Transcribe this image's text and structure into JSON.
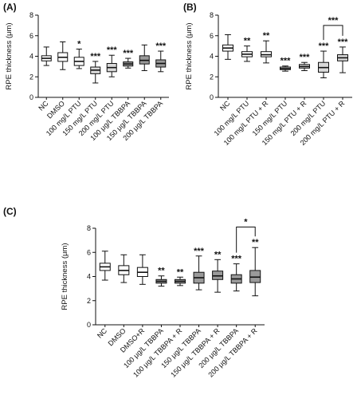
{
  "chart_data": [
    {
      "panel": "(A)",
      "type": "box",
      "ylabel": "RPE thickness (μm)",
      "ylim": [
        0,
        8
      ],
      "yticks": [
        0,
        2,
        4,
        6,
        8
      ],
      "categories": [
        "NC",
        "DMSO",
        "100 mg/L PTU",
        "150 mg/L PTU",
        "200 mg/L PTU",
        "100 μg/L TBBPA",
        "150 μg/L TBBPA",
        "200 μg/L TBBPA"
      ],
      "boxes": [
        {
          "min": 3.1,
          "q1": 3.55,
          "median": 3.8,
          "q3": 4.05,
          "max": 4.9,
          "fill": "#ffffff",
          "sig": ""
        },
        {
          "min": 2.7,
          "q1": 3.5,
          "median": 3.9,
          "q3": 4.35,
          "max": 5.4,
          "fill": "#ffffff",
          "sig": ""
        },
        {
          "min": 2.8,
          "q1": 3.1,
          "median": 3.5,
          "q3": 3.9,
          "max": 4.7,
          "fill": "#ffffff",
          "sig": "*"
        },
        {
          "min": 1.4,
          "q1": 2.3,
          "median": 2.65,
          "q3": 2.95,
          "max": 3.5,
          "fill": "#d9d9d9",
          "sig": "***"
        },
        {
          "min": 2.0,
          "q1": 2.5,
          "median": 2.9,
          "q3": 3.3,
          "max": 4.1,
          "fill": "#d9d9d9",
          "sig": "***"
        },
        {
          "min": 2.85,
          "q1": 3.05,
          "median": 3.25,
          "q3": 3.45,
          "max": 3.8,
          "fill": "#9a9a9a",
          "sig": "***"
        },
        {
          "min": 2.6,
          "q1": 3.25,
          "median": 3.6,
          "q3": 4.05,
          "max": 5.1,
          "fill": "#9a9a9a",
          "sig": ""
        },
        {
          "min": 2.5,
          "q1": 2.95,
          "median": 3.3,
          "q3": 3.65,
          "max": 4.5,
          "fill": "#9a9a9a",
          "sig": "***"
        }
      ],
      "brackets": []
    },
    {
      "panel": "(B)",
      "type": "box",
      "ylabel": "RPE thickness (μm)",
      "ylim": [
        0,
        8
      ],
      "yticks": [
        0,
        2,
        4,
        6,
        8
      ],
      "categories": [
        "NC",
        "100 mg/L PTU",
        "100 mg/L PTU + R",
        "150 mg/L PTU",
        "150 mg/L PTU + R",
        "200 mg/L PTU",
        "200 mg/L PTU + R"
      ],
      "boxes": [
        {
          "min": 3.7,
          "q1": 4.5,
          "median": 4.8,
          "q3": 5.1,
          "max": 6.1,
          "fill": "#ffffff",
          "sig": ""
        },
        {
          "min": 3.5,
          "q1": 3.95,
          "median": 4.2,
          "q3": 4.45,
          "max": 5.0,
          "fill": "#ffffff",
          "sig": "**"
        },
        {
          "min": 3.35,
          "q1": 3.95,
          "median": 4.15,
          "q3": 4.45,
          "max": 5.5,
          "fill": "#ffffff",
          "sig": "**"
        },
        {
          "min": 2.55,
          "q1": 2.7,
          "median": 2.8,
          "q3": 2.95,
          "max": 3.05,
          "fill": "#d9d9d9",
          "sig": "***"
        },
        {
          "min": 2.6,
          "q1": 2.85,
          "median": 3.0,
          "q3": 3.2,
          "max": 3.4,
          "fill": "#d9d9d9",
          "sig": "***"
        },
        {
          "min": 1.9,
          "q1": 2.45,
          "median": 2.9,
          "q3": 3.4,
          "max": 4.5,
          "fill": "#d9d9d9",
          "sig": "***"
        },
        {
          "min": 2.4,
          "q1": 3.55,
          "median": 3.85,
          "q3": 4.15,
          "max": 4.9,
          "fill": "#d9d9d9",
          "sig": "***"
        }
      ],
      "brackets": [
        {
          "from": 5,
          "to": 6,
          "y": 7.0,
          "label": "***"
        }
      ]
    },
    {
      "panel": "(C)",
      "type": "box",
      "ylabel": "RPE thickness (μm)",
      "ylim": [
        0,
        8
      ],
      "yticks": [
        0,
        2,
        4,
        6,
        8
      ],
      "categories": [
        "NC",
        "DMSO",
        "DMSO+R",
        "100 μg/L TBBPA",
        "100 μg/L TBBPA + R",
        "150 μg/L TBBPA",
        "150 μg/L TBBPA + R",
        "200 μg/L TBBPA",
        "200 μg/L TBBPA + R"
      ],
      "boxes": [
        {
          "min": 3.7,
          "q1": 4.5,
          "median": 4.8,
          "q3": 5.1,
          "max": 6.1,
          "fill": "#ffffff",
          "sig": ""
        },
        {
          "min": 3.5,
          "q1": 4.15,
          "median": 4.5,
          "q3": 4.9,
          "max": 5.8,
          "fill": "#ffffff",
          "sig": ""
        },
        {
          "min": 3.35,
          "q1": 4.0,
          "median": 4.35,
          "q3": 4.75,
          "max": 5.8,
          "fill": "#ffffff",
          "sig": ""
        },
        {
          "min": 3.2,
          "q1": 3.45,
          "median": 3.6,
          "q3": 3.75,
          "max": 4.05,
          "fill": "#9a9a9a",
          "sig": "**"
        },
        {
          "min": 3.25,
          "q1": 3.45,
          "median": 3.6,
          "q3": 3.75,
          "max": 3.95,
          "fill": "#9a9a9a",
          "sig": "**"
        },
        {
          "min": 2.9,
          "q1": 3.45,
          "median": 3.9,
          "q3": 4.35,
          "max": 5.7,
          "fill": "#9a9a9a",
          "sig": "***"
        },
        {
          "min": 2.7,
          "q1": 3.75,
          "median": 4.05,
          "q3": 4.45,
          "max": 5.4,
          "fill": "#9a9a9a",
          "sig": "**"
        },
        {
          "min": 2.8,
          "q1": 3.45,
          "median": 3.8,
          "q3": 4.15,
          "max": 5.05,
          "fill": "#9a9a9a",
          "sig": "***"
        },
        {
          "min": 2.4,
          "q1": 3.5,
          "median": 3.95,
          "q3": 4.5,
          "max": 6.4,
          "fill": "#9a9a9a",
          "sig": "**"
        }
      ],
      "brackets": [
        {
          "from": 7,
          "to": 8,
          "y": 8.1,
          "label": "*"
        }
      ]
    }
  ]
}
